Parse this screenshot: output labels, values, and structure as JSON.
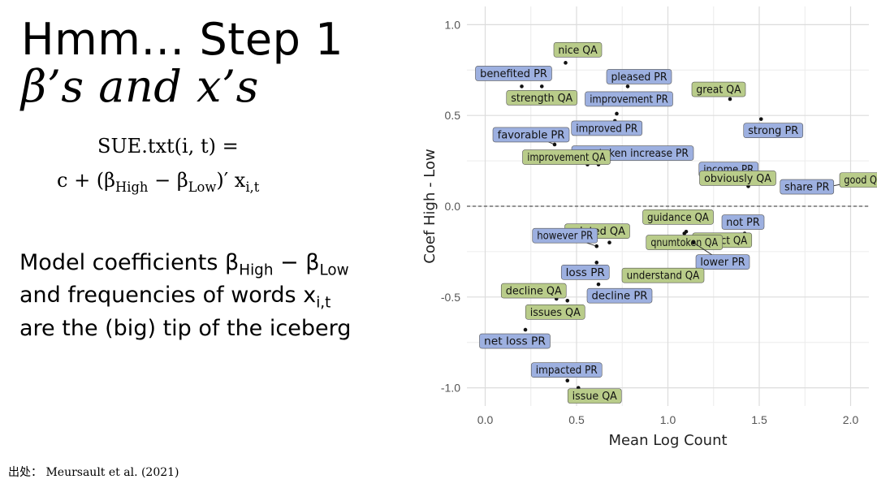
{
  "slide": {
    "title_line1": "Hmm… Step 1",
    "title_line2": "β’s and x’s",
    "formula_line1": "SUE.txt(i, t) =",
    "formula_line2": "c + (β_High − β_Low)′ x_{i,t}",
    "body": "Model coefficients β_High − β_Low and frequencies of words x_{i,t} are the (big) tip of the iceberg",
    "citation": "出处： Meursault et al. (2021)"
  },
  "chart_data": {
    "type": "scatter",
    "xlabel": "Mean Log Count",
    "ylabel": "Coef High - Low",
    "xlim": [
      -0.1,
      2.1
    ],
    "ylim": [
      -1.1,
      1.1
    ],
    "xticks": [
      0.0,
      0.5,
      1.0,
      1.5,
      2.0
    ],
    "yticks": [
      -1.0,
      -0.5,
      0.0,
      0.5,
      1.0
    ],
    "xtick_labels": [
      "0.0",
      "0.5",
      "1.0",
      "1.5",
      "2.0"
    ],
    "ytick_labels": [
      "-1.0",
      "-0.5",
      "0.0",
      "0.5",
      "1.0"
    ],
    "reference_line_y": 0.0,
    "grid": true,
    "colors": {
      "PR": "#9db0e0",
      "QA": "#b9cc8a"
    },
    "points": [
      {
        "label": "nice QA",
        "x": 0.44,
        "y": 0.79,
        "group": "QA"
      },
      {
        "label": "benefited PR",
        "x": 0.2,
        "y": 0.66,
        "group": "PR"
      },
      {
        "label": "strength QA",
        "x": 0.31,
        "y": 0.66,
        "group": "QA"
      },
      {
        "label": "pleased PR",
        "x": 0.78,
        "y": 0.66,
        "group": "PR"
      },
      {
        "label": "great QA",
        "x": 1.34,
        "y": 0.59,
        "group": "QA"
      },
      {
        "label": "improvement PR",
        "x": 0.72,
        "y": 0.51,
        "group": "PR"
      },
      {
        "label": "improved PR",
        "x": 0.71,
        "y": 0.47,
        "group": "PR"
      },
      {
        "label": "strong PR",
        "x": 1.51,
        "y": 0.48,
        "group": "PR"
      },
      {
        "label": "favorable PR",
        "x": 0.38,
        "y": 0.34,
        "group": "PR"
      },
      {
        "label": "numtoken increase PR",
        "x": 0.62,
        "y": 0.23,
        "group": "PR"
      },
      {
        "label": "improvement QA",
        "x": 0.56,
        "y": 0.23,
        "group": "QA"
      },
      {
        "label": "income PR",
        "x": 1.31,
        "y": 0.14,
        "group": "PR"
      },
      {
        "label": "good QA",
        "x": 1.84,
        "y": 0.1,
        "group": "QA"
      },
      {
        "label": "obviously QA",
        "x": 1.44,
        "y": 0.11,
        "group": "QA"
      },
      {
        "label": "share PR",
        "x": 1.69,
        "y": 0.08,
        "group": "PR"
      },
      {
        "label": "guidance QA",
        "x": 1.1,
        "y": -0.14,
        "group": "QA"
      },
      {
        "label": "not PR",
        "x": 1.42,
        "y": -0.15,
        "group": "PR"
      },
      {
        "label": "related QA",
        "x": 0.68,
        "y": -0.2,
        "group": "QA"
      },
      {
        "label": "impact QA",
        "x": 1.15,
        "y": -0.16,
        "group": "QA"
      },
      {
        "label": "however PR",
        "x": 0.61,
        "y": -0.22,
        "group": "PR"
      },
      {
        "label": "qnumtoken QA",
        "x": 1.09,
        "y": -0.15,
        "group": "QA"
      },
      {
        "label": "lower PR",
        "x": 1.14,
        "y": -0.2,
        "group": "PR"
      },
      {
        "label": "loss PR",
        "x": 0.61,
        "y": -0.31,
        "group": "PR"
      },
      {
        "label": "understand QA",
        "x": 0.76,
        "y": -0.39,
        "group": "QA"
      },
      {
        "label": "decline QA",
        "x": 0.39,
        "y": -0.51,
        "group": "QA"
      },
      {
        "label": "decline PR",
        "x": 0.62,
        "y": -0.43,
        "group": "PR"
      },
      {
        "label": "issues QA",
        "x": 0.45,
        "y": -0.52,
        "group": "QA"
      },
      {
        "label": "net loss PR",
        "x": 0.22,
        "y": -0.68,
        "group": "PR"
      },
      {
        "label": "impacted PR",
        "x": 0.45,
        "y": -0.96,
        "group": "PR"
      },
      {
        "label": "issue QA",
        "x": 0.51,
        "y": -1.0,
        "group": "QA"
      }
    ]
  }
}
